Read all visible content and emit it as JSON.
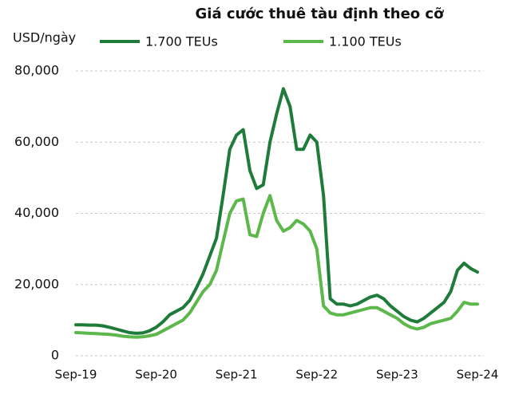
{
  "chart_data": {
    "type": "line",
    "title": "Giá cước thuê tàu định theo cỡ",
    "y_label": "USD/ngày",
    "categories": [
      "Sep-19",
      null,
      null,
      null,
      null,
      null,
      null,
      null,
      null,
      null,
      null,
      null,
      "Sep-20",
      null,
      null,
      null,
      null,
      null,
      null,
      null,
      null,
      null,
      null,
      null,
      "Sep-21",
      null,
      null,
      null,
      null,
      null,
      null,
      null,
      null,
      null,
      null,
      null,
      "Sep-22",
      null,
      null,
      null,
      null,
      null,
      null,
      null,
      null,
      null,
      null,
      null,
      "Sep-23",
      null,
      null,
      null,
      null,
      null,
      null,
      null,
      null,
      null,
      null,
      null,
      "Sep-24"
    ],
    "series": [
      {
        "name": "1.700 TEUs",
        "color": "#1e7b3a",
        "values": [
          8700,
          8700,
          8600,
          8600,
          8400,
          8000,
          7500,
          7000,
          6500,
          6300,
          6400,
          7000,
          8000,
          9500,
          11500,
          12500,
          13500,
          15500,
          19000,
          23000,
          28000,
          33000,
          45000,
          58000,
          62000,
          63500,
          52000,
          47000,
          48000,
          60000,
          68000,
          75000,
          70000,
          58000,
          58000,
          62000,
          60000,
          45000,
          16000,
          14500,
          14500,
          14000,
          14500,
          15500,
          16500,
          17000,
          16000,
          14000,
          12500,
          11000,
          10000,
          9500,
          10500,
          12000,
          13500,
          15000,
          18000,
          24000,
          26000,
          24500,
          23500
        ]
      },
      {
        "name": "1.100 TEUs",
        "color": "#5cb84a",
        "values": [
          6500,
          6400,
          6300,
          6200,
          6100,
          6000,
          5800,
          5500,
          5300,
          5200,
          5300,
          5600,
          6000,
          7000,
          8000,
          9000,
          10000,
          12000,
          15000,
          18000,
          20000,
          24000,
          32000,
          40000,
          43500,
          44000,
          34000,
          33500,
          40000,
          45000,
          38000,
          35000,
          36000,
          38000,
          37000,
          35000,
          30000,
          14000,
          12000,
          11500,
          11500,
          12000,
          12500,
          13000,
          13500,
          13500,
          12500,
          11500,
          10500,
          9000,
          8000,
          7500,
          8000,
          9000,
          9500,
          10000,
          10500,
          12500,
          15000,
          14500,
          14500
        ]
      }
    ],
    "ylim": [
      0,
      80000
    ],
    "yticks": [
      0,
      {
        "value": 20000,
        "label": "20,000"
      },
      {
        "value": 40000,
        "label": "40,000"
      },
      {
        "value": 60000,
        "label": "60,000"
      },
      {
        "value": 80000,
        "label": "80,000"
      }
    ],
    "grid": true
  }
}
